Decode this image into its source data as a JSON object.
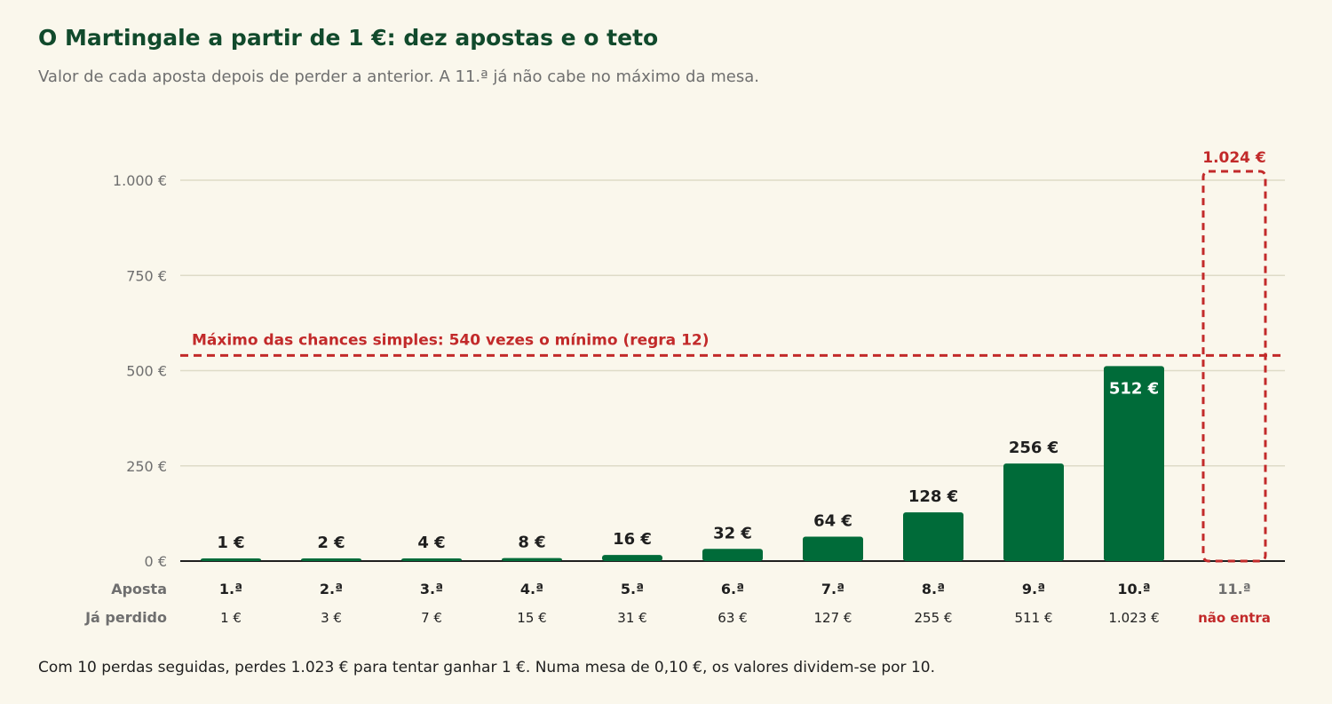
{
  "title": "O Martingale a partir de 1 €: dez apostas e o teto",
  "subtitle": "Valor de cada aposta depois de perder a anterior. A 11.ª já não cabe no máximo da mesa.",
  "footnote": "Com 10 perdas seguidas, perdes 1.023 € para tentar ganhar 1 €. Numa mesa de 0,10 €, os valores dividem-se por 10.",
  "colors": {
    "bar": "#006b39",
    "limit": "#c22a2a",
    "grid": "#dedbc7",
    "axis_text": "#6f6f6f",
    "value_text": "#1f1f1f"
  },
  "chart_data": {
    "type": "bar",
    "categories": [
      "1.ª",
      "2.ª",
      "3.ª",
      "4.ª",
      "5.ª",
      "6.ª",
      "7.ª",
      "8.ª",
      "9.ª",
      "10.ª",
      "11.ª"
    ],
    "values": [
      1,
      2,
      4,
      8,
      16,
      32,
      64,
      128,
      256,
      512,
      1024
    ],
    "value_labels": [
      "1 €",
      "2 €",
      "4 €",
      "8 €",
      "16 €",
      "32 €",
      "64 €",
      "128 €",
      "256 €",
      "512 €",
      "1.024 €"
    ],
    "lost_row_label": "Já perdido",
    "lost_labels": [
      "1 €",
      "3 €",
      "7 €",
      "15 €",
      "31 €",
      "63 €",
      "127 €",
      "255 €",
      "511 €",
      "1.023 €",
      "não entra"
    ],
    "row_label_category": "Aposta",
    "exceeds_limit_index": 10,
    "ylim": [
      0,
      1000
    ],
    "yticks": [
      0,
      250,
      500,
      750,
      1000
    ],
    "ytick_labels": [
      "0 €",
      "250 €",
      "500 €",
      "750 €",
      "1.000 €"
    ],
    "grid": true,
    "limit_line": {
      "value": 540,
      "label": "Máximo das chances simples: 540 vezes o mínimo (regra 12)"
    }
  }
}
